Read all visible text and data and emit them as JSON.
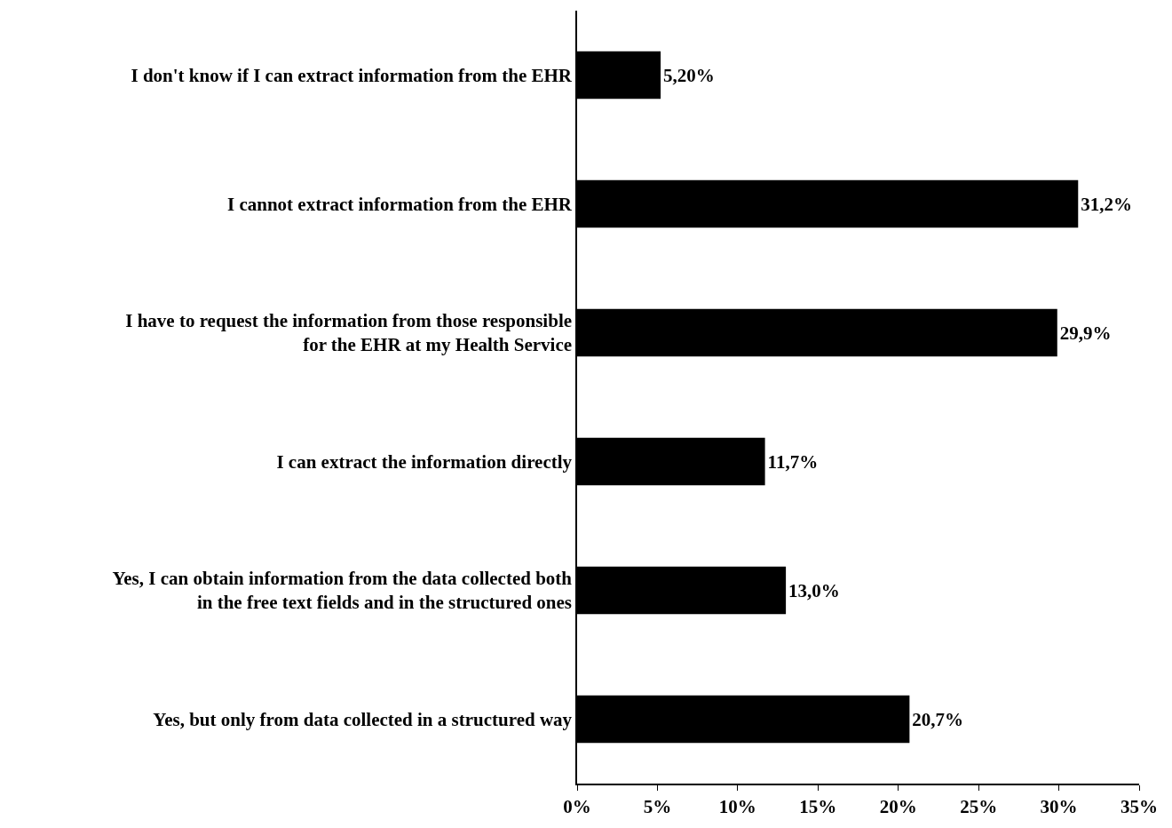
{
  "chart_data": {
    "type": "bar",
    "orientation": "horizontal",
    "categories": [
      "I don't know if I can extract information from the EHR",
      "I cannot extract information from the EHR",
      "I have to request the information from those responsible for the EHR at my Health Service",
      "I can extract the information directly",
      "Yes, I can obtain information from the data collected both in the free text fields and in the structured ones",
      "Yes, but only from data collected in a structured way"
    ],
    "values": [
      5.2,
      31.2,
      29.9,
      11.7,
      13.0,
      20.7
    ],
    "value_labels": [
      "5,20%",
      "31,2%",
      "29,9%",
      "11,7%",
      "13,0%",
      "20,7%"
    ],
    "color": "#000000",
    "xlim": [
      0,
      35
    ],
    "xticks": [
      {
        "value": 0,
        "label": "0%"
      },
      {
        "value": 5,
        "label": "5%"
      },
      {
        "value": 10,
        "label": "10%"
      },
      {
        "value": 15,
        "label": "15%"
      },
      {
        "value": 20,
        "label": "20%"
      },
      {
        "value": 25,
        "label": "25%"
      },
      {
        "value": 30,
        "label": "30%"
      },
      {
        "value": 35,
        "label": "35%"
      }
    ],
    "legend": false
  }
}
